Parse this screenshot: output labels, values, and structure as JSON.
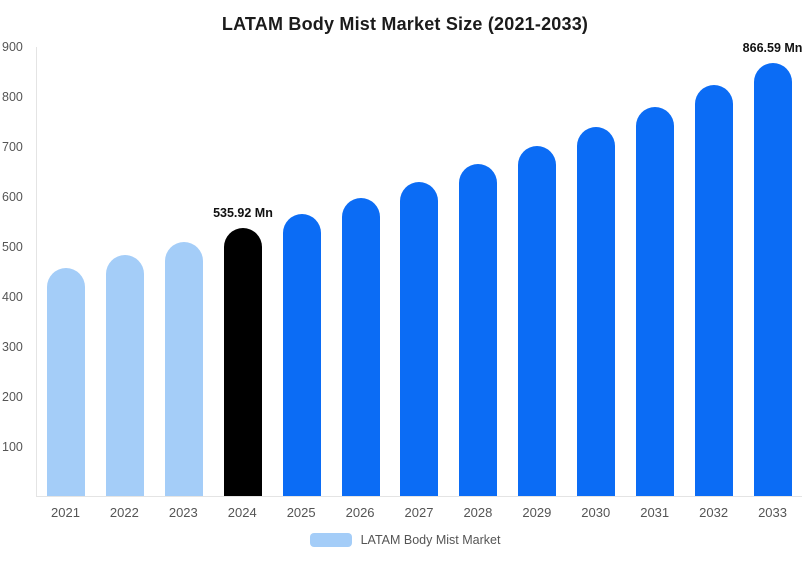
{
  "chart_data": {
    "type": "bar",
    "title": "LATAM Body Mist Market Size (2021-2033)",
    "categories": [
      "2021",
      "2022",
      "2023",
      "2024",
      "2025",
      "2026",
      "2027",
      "2028",
      "2029",
      "2030",
      "2031",
      "2032",
      "2033"
    ],
    "values": [
      457,
      482,
      508,
      535.92,
      565,
      596,
      629,
      664,
      700,
      738,
      779,
      822,
      866.59
    ],
    "unit": "Mn",
    "ylim": [
      0,
      900
    ],
    "y_ticks": [
      900,
      800,
      700,
      600,
      500,
      400,
      300,
      200,
      100
    ],
    "grid": false,
    "data_labels": [
      {
        "index": 3,
        "text": "535.92 Mn"
      },
      {
        "index": 12,
        "text": "866.59 Mn"
      }
    ],
    "bar_colors": [
      "#A4CDF8",
      "#A4CDF8",
      "#A4CDF8",
      "#000000",
      "#0B6CF5",
      "#0B6CF5",
      "#0B6CF5",
      "#0B6CF5",
      "#0B6CF5",
      "#0B6CF5",
      "#0B6CF5",
      "#0B6CF5",
      "#0B6CF5"
    ],
    "colors": {
      "historical": "#A4CDF8",
      "base_year": "#000000",
      "forecast": "#0B6CF5",
      "axis_text": "#555555",
      "axis_line": "#E4E4E4"
    },
    "legend": {
      "label": "LATAM Body Mist Market",
      "position": "bottom",
      "swatch_color": "#A4CDF8"
    }
  }
}
